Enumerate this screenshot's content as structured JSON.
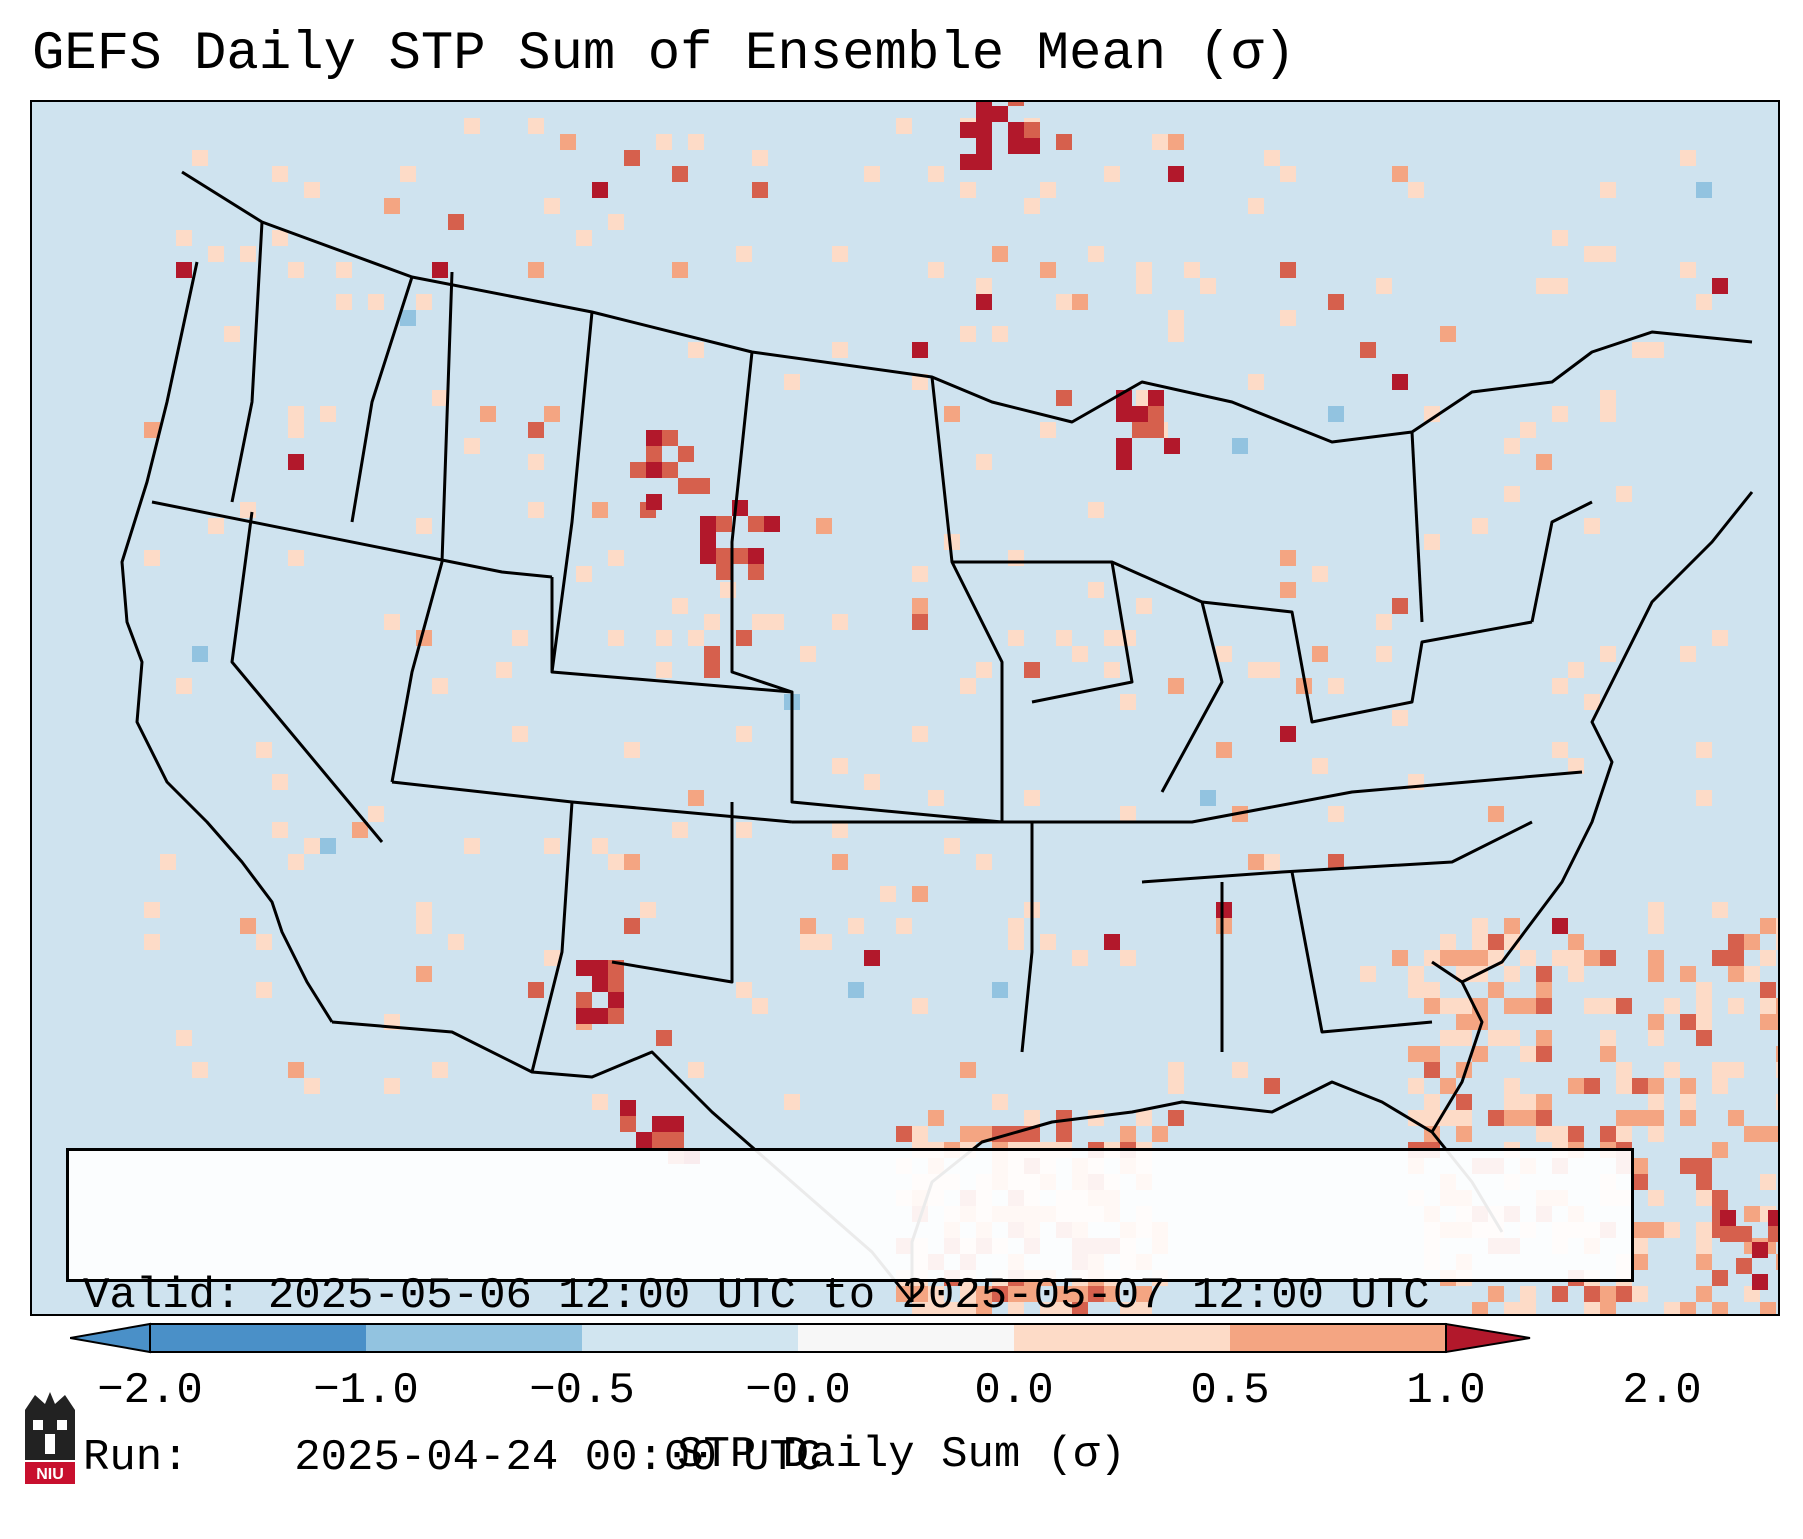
{
  "title": "GEFS Daily STP Sum of Ensemble Mean (σ)",
  "info": {
    "valid_label": "Valid:",
    "valid_value": "2025-05-06 12:00 UTC to 2025-05-07 12:00 UTC",
    "run_label": "Run:",
    "run_value": "2025-04-24 00:00 UTC"
  },
  "colorbar": {
    "label": "STP Daily Sum (σ)",
    "ticks": [
      "−2.0",
      "−1.0",
      "−0.5",
      "−0.0",
      "0.0",
      "0.5",
      "1.0",
      "2.0"
    ],
    "colors": {
      "lt_m1": "#4a90c8",
      "m1_m05": "#92c3e0",
      "m05_m0": "#d1e5f0",
      "m0_0": "#f7f7f7",
      "p0_05": "#fddbc7",
      "p05_1": "#f4a582",
      "p1_2": "#d6604d",
      "gt_2": "#b2182b"
    }
  },
  "logo_text": "NIU",
  "map_colors": {
    "ocean_land": "#cfe3ef",
    "light_red": "#fddbc7",
    "mid_red": "#f4a582",
    "red": "#d6604d",
    "dark_red": "#b2182b",
    "light_blue": "#92c3e0",
    "boundary": "#000000"
  }
}
